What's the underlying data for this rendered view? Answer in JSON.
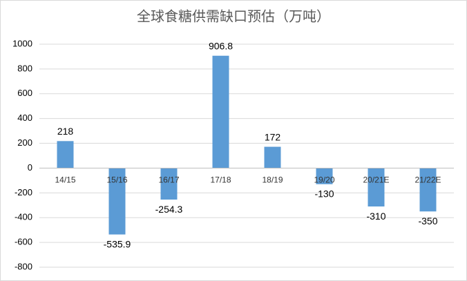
{
  "chart_data": {
    "type": "bar",
    "title": "全球食糖供需缺口预估（万吨）",
    "categories": [
      "14/15",
      "15/16",
      "16/17",
      "17/18",
      "18/19",
      "19/20",
      "20/21E",
      "21/22E"
    ],
    "values": [
      218,
      -535.9,
      -254.3,
      906.8,
      172,
      -130,
      -310,
      -350
    ],
    "color": "#5b9bd5",
    "ylim": [
      -800,
      1000
    ],
    "yticks": [
      -800,
      -600,
      -400,
      -200,
      0,
      200,
      400,
      600,
      800,
      1000
    ],
    "grid": true
  }
}
